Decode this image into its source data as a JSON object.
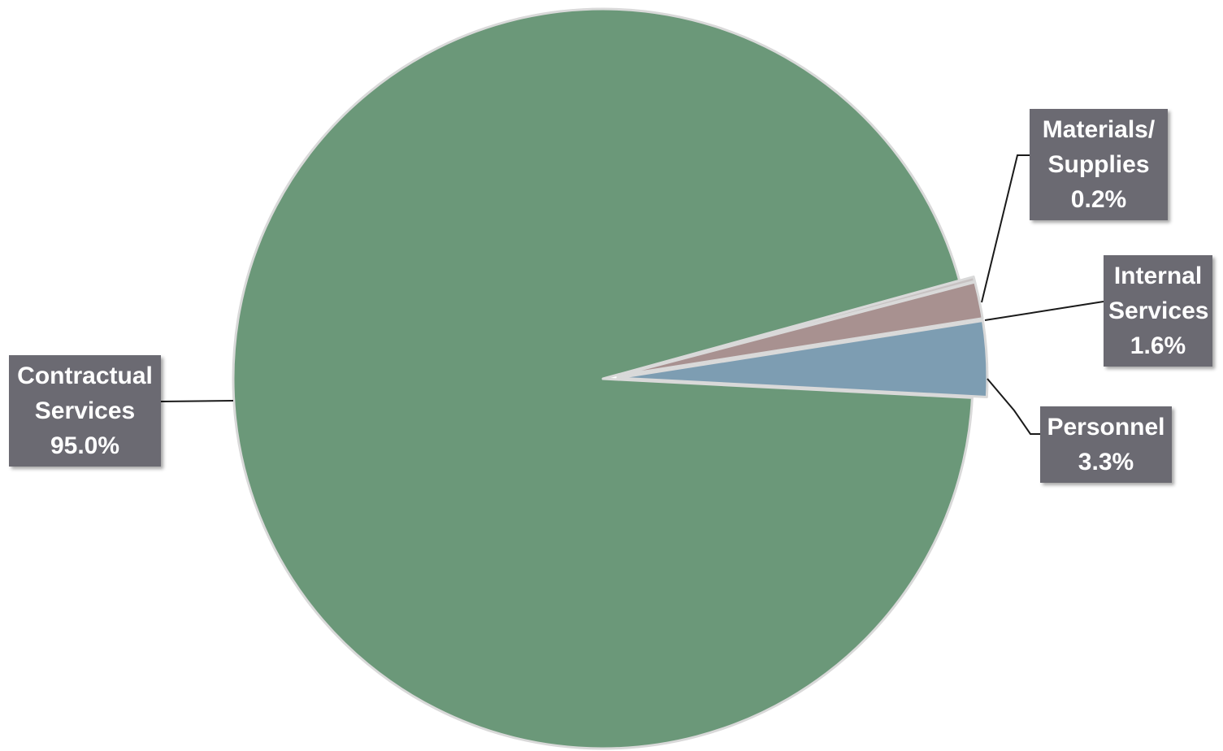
{
  "chart_data": {
    "type": "pie",
    "title": "",
    "slices": [
      {
        "label_lines": [
          "Personnel"
        ],
        "value": 3.3,
        "value_label": "3.3%",
        "color": "#7d9db2",
        "exploded": true
      },
      {
        "label_lines": [
          "Internal",
          "Services"
        ],
        "value": 1.6,
        "value_label": "1.6%",
        "color": "#a89190",
        "exploded": true
      },
      {
        "label_lines": [
          "Materials/",
          "Supplies"
        ],
        "value": 0.2,
        "value_label": "0.2%",
        "color": "#c7c2c2",
        "exploded": true
      },
      {
        "label_lines": [
          "Contractual",
          "Services"
        ],
        "value": 95.0,
        "value_label": "95.0%",
        "color": "#6b9879",
        "exploded": false
      }
    ],
    "legend": "none",
    "data_labels": "callout boxes with leader lines"
  }
}
